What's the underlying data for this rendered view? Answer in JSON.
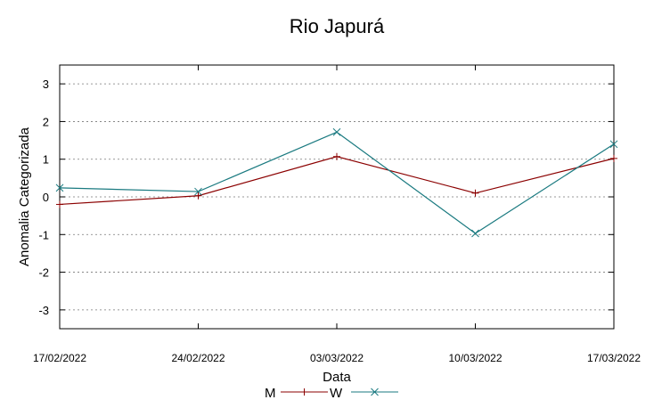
{
  "chart_data": {
    "type": "line",
    "title": "Rio Japurá",
    "xlabel": "Data",
    "ylabel": "Anomalia Categorizada",
    "categories": [
      "17/02/2022",
      "24/02/2022",
      "03/03/2022",
      "10/03/2022",
      "17/03/2022"
    ],
    "ylim": [
      -3.5,
      3.5
    ],
    "yticks": [
      3,
      2,
      1,
      0,
      -1,
      -2,
      -3
    ],
    "ytick_labels": [
      "3",
      "2",
      "1",
      "0",
      "-1",
      "-2",
      "-3"
    ],
    "grid": true,
    "legend_position": "bottom",
    "series": [
      {
        "name": "M",
        "color": "#8b0000",
        "marker": "plus",
        "values": [
          -0.2,
          0.03,
          1.07,
          0.1,
          1.02
        ]
      },
      {
        "name": "W",
        "color": "#1a7a80",
        "marker": "x",
        "values": [
          0.24,
          0.14,
          1.72,
          -0.97,
          1.4
        ]
      }
    ]
  }
}
